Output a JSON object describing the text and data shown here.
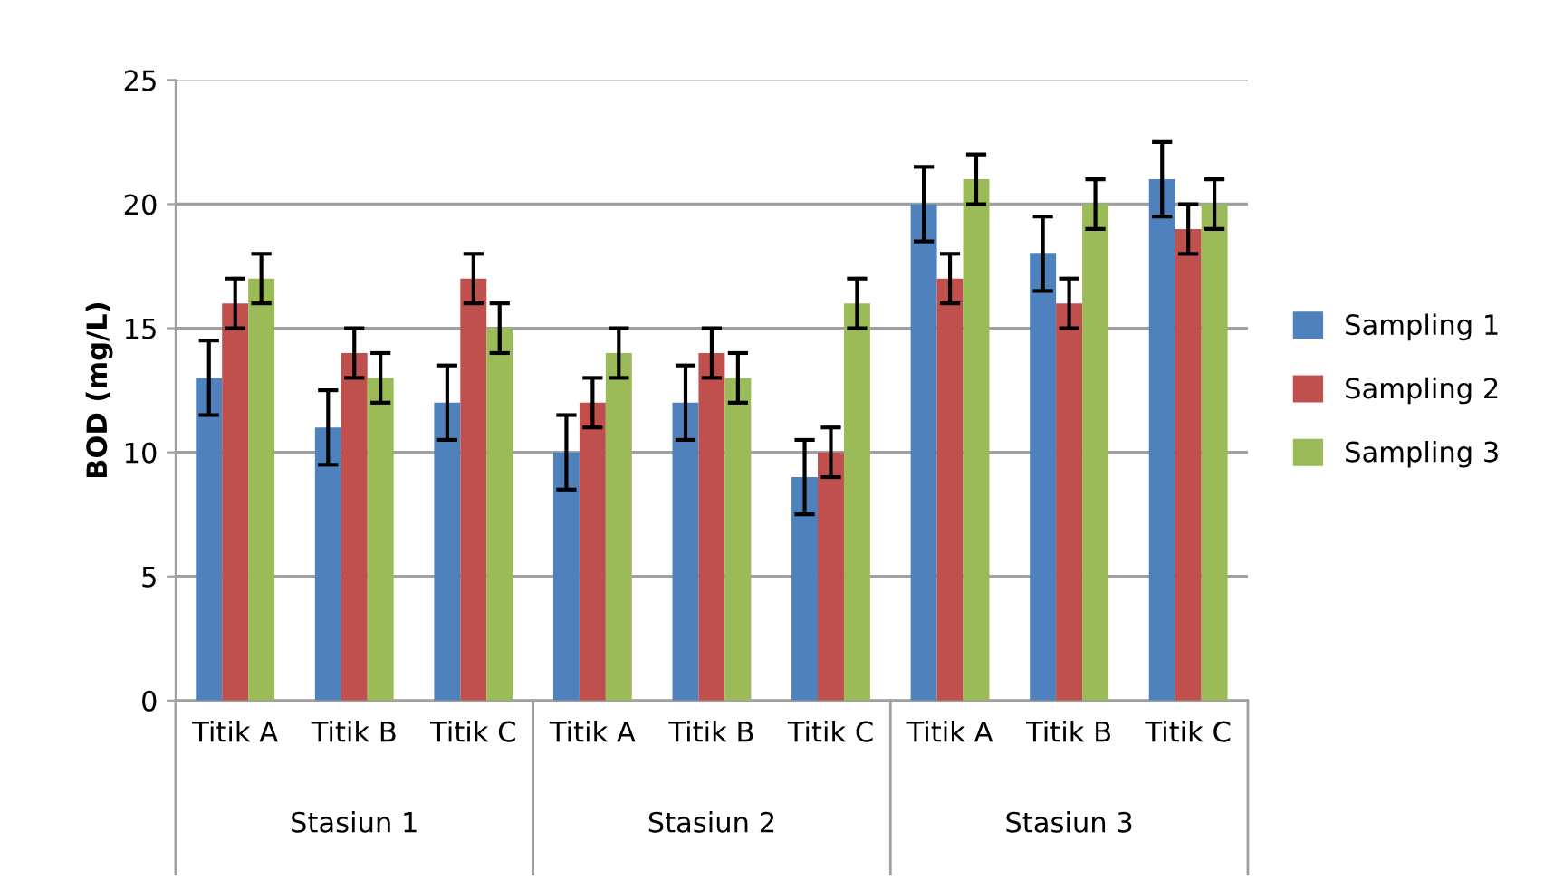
{
  "chart_data": {
    "type": "bar",
    "ylabel": "BOD (mg/L)",
    "categories": [
      "Titik A",
      "Titik B",
      "Titik C",
      "Titik A",
      "Titik B",
      "Titik C",
      "Titik A",
      "Titik B",
      "Titik C"
    ],
    "annotations": [
      "Stasiun 1",
      "Stasiun 2",
      "Stasiun 3"
    ],
    "series": [
      {
        "name": "Sampling 1",
        "color": "#4f81bd",
        "values": [
          13,
          11,
          12,
          10,
          12,
          9,
          20,
          18,
          21
        ],
        "errors": [
          1.5,
          1.5,
          1.5,
          1.5,
          1.5,
          1.5,
          1.5,
          1.5,
          1.5
        ]
      },
      {
        "name": "Sampling 2",
        "color": "#c0504d",
        "values": [
          16,
          14,
          17,
          12,
          14,
          10,
          17,
          16,
          19
        ],
        "errors": [
          1,
          1,
          1,
          1,
          1,
          1,
          1,
          1,
          1
        ]
      },
      {
        "name": "Sampling 3",
        "color": "#9bbb59",
        "values": [
          17,
          13,
          15,
          14,
          13,
          16,
          21,
          20,
          20
        ],
        "errors": [
          1,
          1,
          1,
          1,
          1,
          1,
          1,
          1,
          1
        ]
      }
    ],
    "ylim": [
      0,
      25
    ],
    "yticks": [
      0,
      5,
      10,
      15,
      20,
      25
    ],
    "grid": "y",
    "legend": "right"
  }
}
